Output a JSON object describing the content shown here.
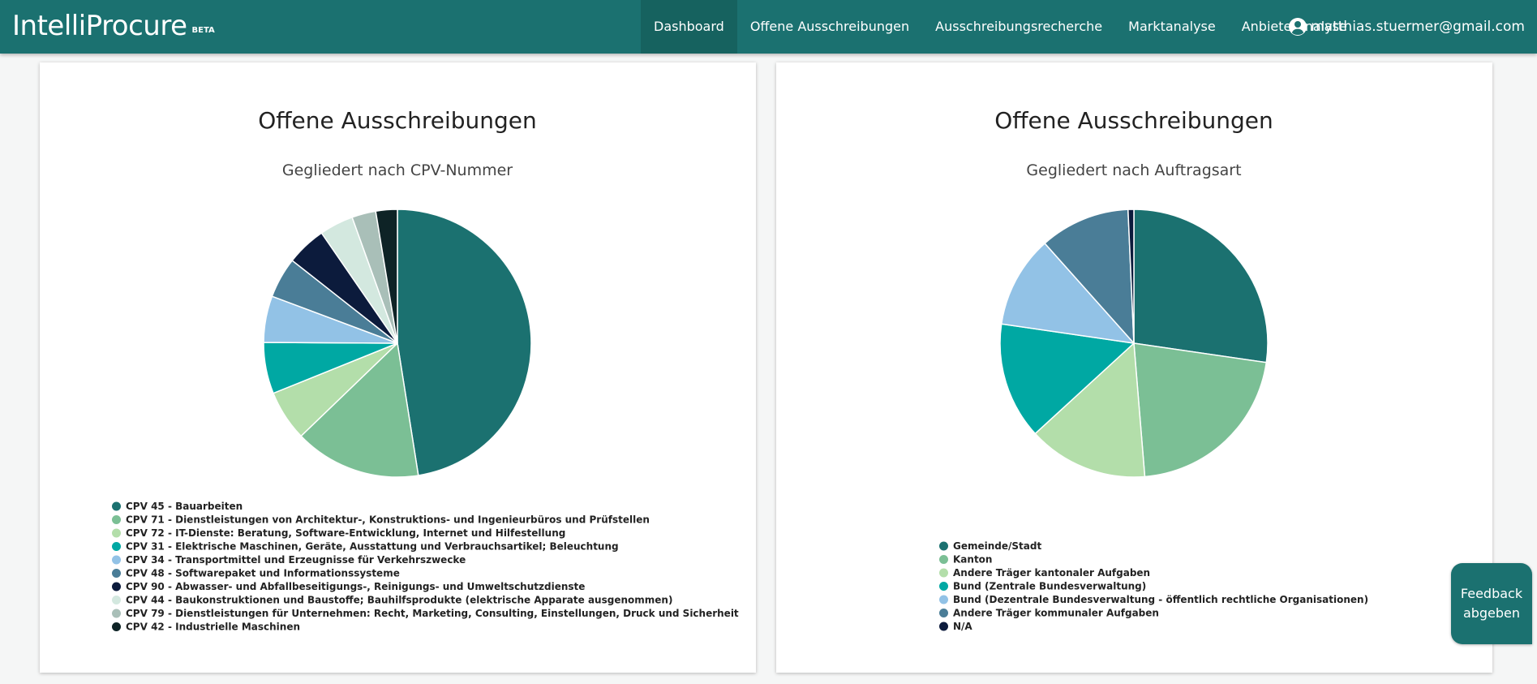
{
  "app": {
    "brand": "IntelliProcure",
    "brand_tag": "BETA",
    "user_email": "matthias.stuermer@gmail.com"
  },
  "nav": [
    {
      "label": "Dashboard",
      "active": true
    },
    {
      "label": "Offene Ausschreibungen",
      "active": false
    },
    {
      "label": "Ausschreibungsrecherche",
      "active": false
    },
    {
      "label": "Marktanalyse",
      "active": false
    },
    {
      "label": "Anbieteranalyse",
      "active": false
    }
  ],
  "feedback": {
    "line1": "Feedback",
    "line2": "abgeben"
  },
  "icons": {
    "user": "user-circle-icon"
  },
  "chart_data": [
    {
      "type": "pie",
      "title": "Offene Ausschreibungen",
      "subtitle": "Gegliedert nach CPV-Nummer",
      "legend_position": "bottom",
      "labels": [
        "CPV 45 - Bauarbeiten",
        "CPV 71 - Dienstleistungen von Architektur-, Konstruktions- und Ingenieurbüros und Prüfstellen",
        "CPV 72 - IT-Dienste: Beratung, Software-Entwicklung, Internet und Hilfestellung",
        "CPV 31 - Elektrische Maschinen, Geräte, Ausstattung und Verbrauchsartikel; Beleuchtung",
        "CPV 34 - Transportmittel und Erzeugnisse für Verkehrszwecke",
        "CPV 48 - Softwarepaket und Informationssysteme",
        "CPV 90 - Abwasser- und Abfallbeseitigungs-, Reinigungs- und Umweltschutzdienste",
        "CPV 44 - Baukonstruktionen und Baustoffe; Bauhilfsprodukte (elektrische Apparate ausgenommen)",
        "CPV 79 - Dienstleistungen für Unternehmen: Recht, Marketing, Consulting, Einstellungen, Druck und Sicherheit",
        "CPV 42 - Industrielle Maschinen"
      ],
      "values": [
        47.5,
        15.3,
        6.1,
        6.2,
        5.6,
        4.9,
        4.8,
        4.1,
        2.9,
        2.6
      ],
      "colors": [
        "#1b7170",
        "#7bbf95",
        "#b3deaa",
        "#00a8a3",
        "#92c2e6",
        "#4a7d97",
        "#0c1b3c",
        "#d3e8df",
        "#a9bfb8",
        "#0e2326"
      ]
    },
    {
      "type": "pie",
      "title": "Offene Ausschreibungen",
      "subtitle": "Gegliedert nach Auftragsart",
      "legend_position": "bottom",
      "labels": [
        "Gemeinde/Stadt",
        "Kanton",
        "Andere Träger kantonaler Aufgaben",
        "Bund (Zentrale Bundesverwaltung)",
        "Bund (Dezentrale Bundesverwaltung - öffentlich rechtliche Organisationen)",
        "Andere Träger kommunaler Aufgaben",
        "N/A"
      ],
      "values": [
        27.3,
        21.4,
        14.5,
        14.1,
        11.1,
        10.9,
        0.7
      ],
      "colors": [
        "#1b7170",
        "#7bbf95",
        "#b3deaa",
        "#00a8a3",
        "#92c2e6",
        "#4a7d97",
        "#0c1b3c"
      ]
    }
  ]
}
